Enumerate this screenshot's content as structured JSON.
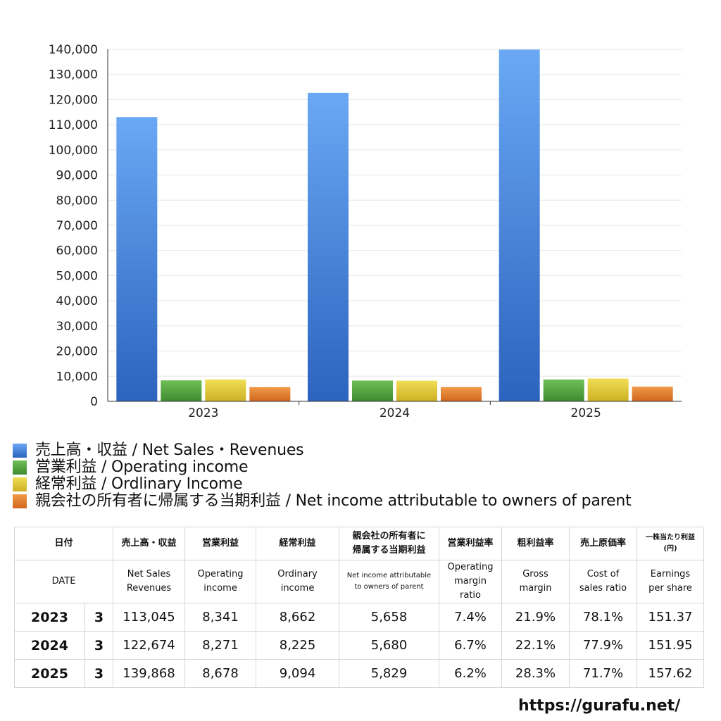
{
  "chart_data": {
    "type": "bar",
    "categories": [
      "2023",
      "2024",
      "2025"
    ],
    "ylim": [
      0,
      140000
    ],
    "yticks": [
      "0",
      "10,000",
      "20,000",
      "30,000",
      "40,000",
      "50,000",
      "60,000",
      "70,000",
      "80,000",
      "90,000",
      "100,000",
      "110,000",
      "120,000",
      "130,000",
      "140,000"
    ],
    "ytick_values": [
      0,
      10000,
      20000,
      30000,
      40000,
      50000,
      60000,
      70000,
      80000,
      90000,
      100000,
      110000,
      120000,
      130000,
      140000
    ],
    "grid": true,
    "legend_position": "bottom-left",
    "series": [
      {
        "name": "売上高・収益 / Net Sales・Revenues",
        "color": "#3f7ee0",
        "values": [
          113045,
          122674,
          139868
        ]
      },
      {
        "name": "営業利益 / Operating income",
        "color": "#4e9e3c",
        "values": [
          8341,
          8271,
          8678
        ]
      },
      {
        "name": "経常利益 / Ordlinary Income",
        "color": "#dcc52e",
        "values": [
          8662,
          8225,
          9094
        ]
      },
      {
        "name": "親会社の所有者に帰属する当期利益 / Net income attributable to owners of parent",
        "color": "#e07a2a",
        "values": [
          5658,
          5680,
          5829
        ]
      }
    ]
  },
  "table": {
    "header_jp": {
      "date": "日付",
      "net_sales": "売上高・収益",
      "operating_income": "営業利益",
      "ordinary_income": "経常利益",
      "net_income_line1": "親会社の所有者に",
      "net_income_line2": "帰属する当期利益",
      "op_margin": "営業利益率",
      "gross_margin": "粗利益率",
      "cost_ratio": "売上原価率",
      "eps_line1": "一株当たり利益",
      "eps_line2": "(円)"
    },
    "header_en": {
      "date": "DATE",
      "net_sales_line1": "Net Sales",
      "net_sales_line2": "Revenues",
      "operating_income_line1": "Operating",
      "operating_income_line2": "income",
      "ordinary_income_line1": "Ordinary",
      "ordinary_income_line2": "income",
      "net_income_line1": "Net income attributable",
      "net_income_line2": "to owners of parent",
      "op_margin_line1": "Operating",
      "op_margin_line2": "margin",
      "op_margin_line3": "ratio",
      "gross_margin_line1": "Gross",
      "gross_margin_line2": "margin",
      "cost_ratio_line1": "Cost of",
      "cost_ratio_line2": "sales ratio",
      "eps_line1": "Earnings",
      "eps_line2": "per share"
    },
    "rows": [
      {
        "year": "2023",
        "month": "3",
        "net_sales": "113,045",
        "operating_income": "8,341",
        "ordinary_income": "8,662",
        "net_income": "5,658",
        "op_margin": "7.4%",
        "gross_margin": "21.9%",
        "cost_ratio": "78.1%",
        "eps": "151.37"
      },
      {
        "year": "2024",
        "month": "3",
        "net_sales": "122,674",
        "operating_income": "8,271",
        "ordinary_income": "8,225",
        "net_income": "5,680",
        "op_margin": "6.7%",
        "gross_margin": "22.1%",
        "cost_ratio": "77.9%",
        "eps": "151.95"
      },
      {
        "year": "2025",
        "month": "3",
        "net_sales": "139,868",
        "operating_income": "8,678",
        "ordinary_income": "9,094",
        "net_income": "5,829",
        "op_margin": "6.2%",
        "gross_margin": "28.3%",
        "cost_ratio": "71.7%",
        "eps": "157.62"
      }
    ]
  },
  "footer": {
    "site_url": "https://gurafu.net/"
  }
}
